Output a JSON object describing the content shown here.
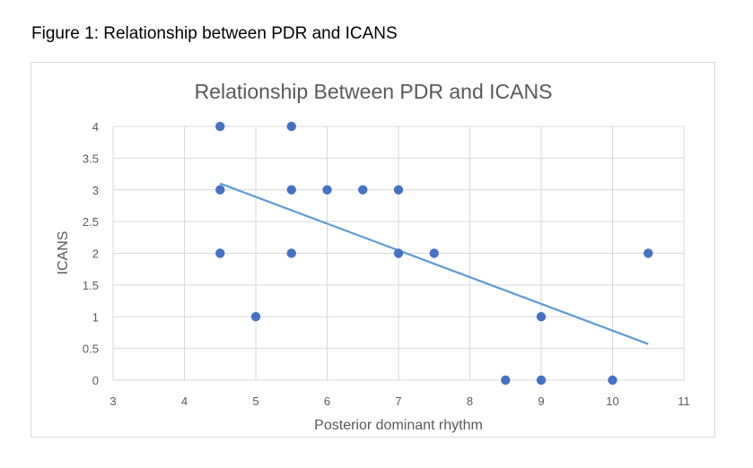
{
  "figure_caption": "Figure 1: Relationship between PDR and ICANS",
  "colors": {
    "point": "#4472c4",
    "trendline": "#5b9bd5",
    "grid": "#d9d9d9",
    "text": "#595959"
  },
  "chart_data": {
    "type": "scatter",
    "title": "Relationship Between PDR and ICANS",
    "xlabel": "Posterior dominant rhythm",
    "ylabel": "ICANS",
    "xlim": [
      3,
      11
    ],
    "ylim": [
      0,
      4
    ],
    "x_ticks": [
      "3",
      "4",
      "5",
      "6",
      "7",
      "8",
      "9",
      "10",
      "11"
    ],
    "y_ticks": [
      "0",
      "0.5",
      "1",
      "1.5",
      "2",
      "2.5",
      "3",
      "3.5",
      "4"
    ],
    "grid": true,
    "series": [
      {
        "name": "ICANS",
        "points": [
          {
            "x": 4.5,
            "y": 4
          },
          {
            "x": 5.5,
            "y": 4
          },
          {
            "x": 4.5,
            "y": 3
          },
          {
            "x": 5.5,
            "y": 3
          },
          {
            "x": 6,
            "y": 3
          },
          {
            "x": 6.5,
            "y": 3
          },
          {
            "x": 7,
            "y": 3
          },
          {
            "x": 4.5,
            "y": 2
          },
          {
            "x": 5.5,
            "y": 2
          },
          {
            "x": 7,
            "y": 2
          },
          {
            "x": 7.5,
            "y": 2
          },
          {
            "x": 10.5,
            "y": 2
          },
          {
            "x": 5,
            "y": 1
          },
          {
            "x": 9,
            "y": 1
          },
          {
            "x": 8.5,
            "y": 0
          },
          {
            "x": 9,
            "y": 0
          },
          {
            "x": 10,
            "y": 0
          }
        ]
      }
    ],
    "trendline": {
      "type": "linear",
      "x": [
        4.5,
        10.5
      ],
      "y": [
        3.1,
        0.57
      ]
    }
  }
}
